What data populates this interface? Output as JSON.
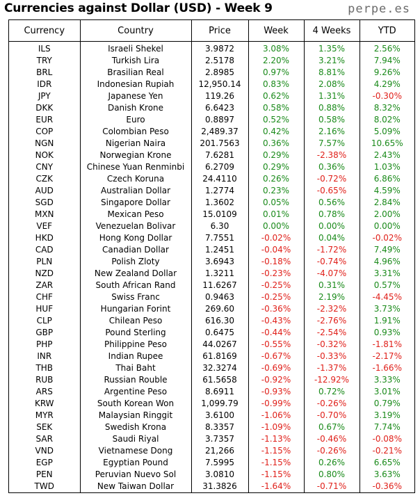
{
  "header": {
    "title": "Currencies against Dollar (USD) - Week 9",
    "brand": "perpe.es"
  },
  "colors": {
    "positive": "#1a8a1a",
    "negative": "#e0201a"
  },
  "chart_data": {
    "type": "table",
    "title": "Currencies against Dollar (USD) - Week 9",
    "columns": [
      "Currency",
      "Country",
      "Price",
      "Week",
      "4 Weeks",
      "YTD"
    ],
    "rows": [
      [
        "ILS",
        "Israeli Shekel",
        "3.9872",
        "3.08%",
        "1.35%",
        "2.56%"
      ],
      [
        "TRY",
        "Turkish Lira",
        "2.5178",
        "2.20%",
        "3.21%",
        "7.94%"
      ],
      [
        "BRL",
        "Brasilian Real",
        "2.8985",
        "0.97%",
        "8.81%",
        "9.26%"
      ],
      [
        "IDR",
        "Indonesian Rupiah",
        "12,950.14",
        "0.83%",
        "2.08%",
        "4.29%"
      ],
      [
        "JPY",
        "Japanese Yen",
        "119.26",
        "0.62%",
        "1.31%",
        "-0.30%"
      ],
      [
        "DKK",
        "Danish Krone",
        "6.6423",
        "0.58%",
        "0.88%",
        "8.32%"
      ],
      [
        "EUR",
        "Euro",
        "0.8897",
        "0.52%",
        "0.58%",
        "8.02%"
      ],
      [
        "COP",
        "Colombian Peso",
        "2,489.37",
        "0.42%",
        "2.16%",
        "5.09%"
      ],
      [
        "NGN",
        "Nigerian Naira",
        "201.7563",
        "0.36%",
        "7.57%",
        "10.65%"
      ],
      [
        "NOK",
        "Norwegian Krone",
        "7.6281",
        "0.29%",
        "-2.38%",
        "2.43%"
      ],
      [
        "CNY",
        "Chinese Yuan Renminbi",
        "6.2709",
        "0.29%",
        "0.36%",
        "1.03%"
      ],
      [
        "CZK",
        "Czech Koruna",
        "24.4110",
        "0.26%",
        "-0.72%",
        "6.86%"
      ],
      [
        "AUD",
        "Australian Dollar",
        "1.2774",
        "0.23%",
        "-0.65%",
        "4.59%"
      ],
      [
        "SGD",
        "Singapore Dollar",
        "1.3602",
        "0.05%",
        "0.56%",
        "2.84%"
      ],
      [
        "MXN",
        "Mexican Peso",
        "15.0109",
        "0.01%",
        "0.78%",
        "2.00%"
      ],
      [
        "VEF",
        "Venezuelan Bolivar",
        "6.30",
        "0.00%",
        "0.00%",
        "0.00%"
      ],
      [
        "HKD",
        "Hong Kong Dollar",
        "7.7551",
        "-0.02%",
        "0.04%",
        "-0.02%"
      ],
      [
        "CAD",
        "Canadian Dollar",
        "1.2451",
        "-0.04%",
        "-1.72%",
        "7.49%"
      ],
      [
        "PLN",
        "Polish Zloty",
        "3.6943",
        "-0.18%",
        "-0.74%",
        "4.96%"
      ],
      [
        "NZD",
        "New Zealand Dollar",
        "1.3211",
        "-0.23%",
        "-4.07%",
        "3.31%"
      ],
      [
        "ZAR",
        "South African Rand",
        "11.6267",
        "-0.25%",
        "0.31%",
        "0.57%"
      ],
      [
        "CHF",
        "Swiss Franc",
        "0.9463",
        "-0.25%",
        "2.19%",
        "-4.45%"
      ],
      [
        "HUF",
        "Hungarian Forint",
        "269.60",
        "-0.36%",
        "-2.32%",
        "3.73%"
      ],
      [
        "CLP",
        "Chilean Peso",
        "616.30",
        "-0.43%",
        "-2.76%",
        "1.91%"
      ],
      [
        "GBP",
        "Pound Sterling",
        "0.6475",
        "-0.44%",
        "-2.54%",
        "0.93%"
      ],
      [
        "PHP",
        "Philippine Peso",
        "44.0267",
        "-0.55%",
        "-0.32%",
        "-1.81%"
      ],
      [
        "INR",
        "Indian Rupee",
        "61.8169",
        "-0.67%",
        "-0.33%",
        "-2.17%"
      ],
      [
        "THB",
        "Thai Baht",
        "32.3274",
        "-0.69%",
        "-1.37%",
        "-1.66%"
      ],
      [
        "RUB",
        "Russian Rouble",
        "61.5658",
        "-0.92%",
        "-12.92%",
        "3.33%"
      ],
      [
        "ARS",
        "Argentine Peso",
        "8.6911",
        "-0.93%",
        "0.72%",
        "3.01%"
      ],
      [
        "KRW",
        "South Korean Won",
        "1,099.79",
        "-0.99%",
        "-0.26%",
        "0.79%"
      ],
      [
        "MYR",
        "Malaysian Ringgit",
        "3.6100",
        "-1.06%",
        "-0.70%",
        "3.19%"
      ],
      [
        "SEK",
        "Swedish Krona",
        "8.3357",
        "-1.09%",
        "0.67%",
        "7.74%"
      ],
      [
        "SAR",
        "Saudi Riyal",
        "3.7357",
        "-1.13%",
        "-0.46%",
        "-0.08%"
      ],
      [
        "VND",
        "Vietnamese Dong",
        "21,266",
        "-1.15%",
        "-0.26%",
        "-0.21%"
      ],
      [
        "EGP",
        "Egyptian Pound",
        "7.5995",
        "-1.15%",
        "0.26%",
        "6.65%"
      ],
      [
        "PEN",
        "Peruvian Nuevo Sol",
        "3.0810",
        "-1.15%",
        "0.80%",
        "3.63%"
      ],
      [
        "TWD",
        "New Taiwan Dollar",
        "31.3826",
        "-1.64%",
        "-0.71%",
        "-0.36%"
      ]
    ]
  }
}
